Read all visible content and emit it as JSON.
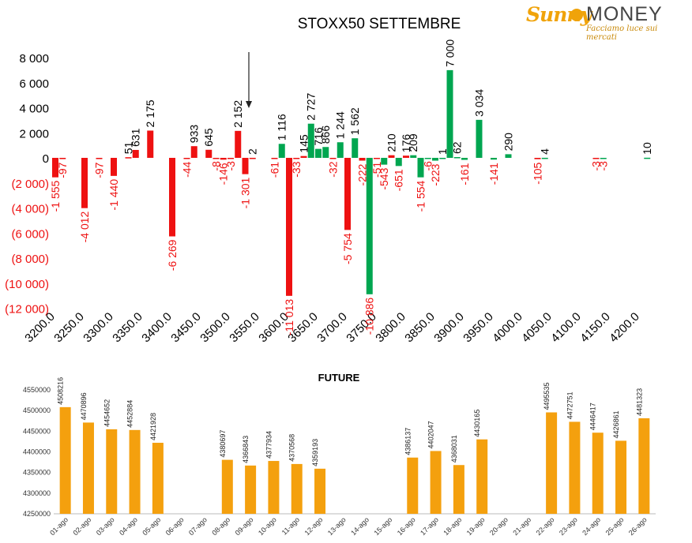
{
  "colors": {
    "negative": "#ee1111",
    "positive": "#00a650",
    "future": "#f4a00e",
    "text": "#000000",
    "negText": "#ee1111"
  },
  "logo": {
    "brand_a": "Sunny",
    "brand_b": "MONEY",
    "tagline": "Facciamo luce sui mercati"
  },
  "chart_data": [
    {
      "type": "bar",
      "title": "STOXX50 SETTEMBRE",
      "ylim": [
        -12000,
        8000
      ],
      "yticks": [
        8000,
        6000,
        4000,
        2000,
        0,
        -2000,
        -4000,
        -6000,
        -8000,
        -10000,
        -12000
      ],
      "yticklabels": [
        "8 000",
        "6 000",
        "4 000",
        "2 000",
        "0",
        "(2 000)",
        "(4 000)",
        "(6 000)",
        "(8 000)",
        "(10 000)",
        "(12 000)"
      ],
      "xticklabels": [
        "3200.0",
        "3250.0",
        "3300.0",
        "3350.0",
        "3400.0",
        "3450.0",
        "3500.0",
        "3550.0",
        "3600.0",
        "3650.0",
        "3700.0",
        "3750.0",
        "3800.0",
        "3850.0",
        "3900.0",
        "3950.0",
        "4000.0",
        "4050.0",
        "4100.0",
        "4150.0",
        "4200.0"
      ],
      "strike_start": 3200,
      "strike_step": 25,
      "arrow_strike": 3550,
      "series": [
        {
          "values": [
            -1555,
            -97,
            -4012,
            -97,
            -1440,
            51,
            631,
            2175,
            -6269,
            -44,
            933,
            645,
            -8,
            -146,
            -3,
            2152,
            -1301,
            2,
            -61,
            1116,
            -11013,
            -33,
            145,
            2727,
            716,
            866,
            -32,
            1244,
            -5754,
            1562,
            -222,
            -10886,
            -51,
            -543,
            210,
            -651,
            176,
            209,
            -1554,
            -6,
            -223,
            1,
            7000,
            62,
            -161,
            3034,
            -141,
            290,
            -105,
            4,
            -3,
            -3,
            10
          ]
        },
        {
          "values": [
            null,
            null,
            null,
            null,
            null,
            null,
            null,
            null,
            null,
            null,
            null,
            null,
            null,
            null,
            null,
            null,
            null,
            null,
            null,
            null,
            null,
            null,
            null,
            null,
            null,
            null,
            null,
            null,
            null,
            null,
            null,
            null,
            null,
            null,
            null,
            null,
            null,
            null,
            null,
            null,
            null,
            null,
            null,
            null,
            null,
            null,
            null,
            null,
            null,
            null,
            null,
            null,
            null
          ]
        }
      ],
      "bar_strikes": [
        3200,
        3212.5,
        3250,
        3275,
        3300,
        3325,
        3337.5,
        3362.5,
        3400,
        3425,
        3437.5,
        3462.5,
        3475,
        3487.5,
        3500,
        3512.5,
        3525,
        3537.5,
        3575,
        3587.5,
        3600,
        3612.5,
        3625,
        3637.5,
        3650,
        3662.5,
        3675,
        3687.5,
        3700,
        3712.5,
        3725,
        3737.5,
        3750,
        3762.5,
        3775,
        3787.5,
        3800,
        3812.5,
        3825,
        3837.5,
        3850,
        3862.5,
        3875,
        3887.5,
        3900,
        3925,
        3950,
        3975,
        4025,
        4037.5,
        4125,
        4137.5,
        4212.5
      ],
      "bar_colors": [
        "neg",
        "neg",
        "neg",
        "neg",
        "neg",
        "neg",
        "neg",
        "neg",
        "neg",
        "neg",
        "neg",
        "neg",
        "neg",
        "neg",
        "neg",
        "neg",
        "neg",
        "neg",
        "neg",
        "pos",
        "neg",
        "neg",
        "neg",
        "pos",
        "pos",
        "pos",
        "neg",
        "pos",
        "neg",
        "pos",
        "neg",
        "pos",
        "neg",
        "pos",
        "neg",
        "pos",
        "neg",
        "pos",
        "pos",
        "pos",
        "pos",
        "pos",
        "pos",
        "pos",
        "pos",
        "pos",
        "pos",
        "pos",
        "neg",
        "pos",
        "neg",
        "pos",
        "pos"
      ]
    },
    {
      "type": "bar",
      "title": "FUTURE",
      "ylim": [
        4250000,
        4550000
      ],
      "yticks": [
        4550000,
        4500000,
        4450000,
        4400000,
        4350000,
        4300000,
        4250000
      ],
      "categories": [
        "01-ago",
        "02-ago",
        "03-ago",
        "04-ago",
        "05-ago",
        "06-ago",
        "07-ago",
        "08-ago",
        "09-ago",
        "10-ago",
        "11-ago",
        "12-ago",
        "13-ago",
        "14-ago",
        "15-ago",
        "16-ago",
        "17-ago",
        "18-ago",
        "19-ago",
        "20-ago",
        "21-ago",
        "22-ago",
        "23-ago",
        "24-ago",
        "25-ago",
        "26-ago"
      ],
      "values": [
        4508216,
        4470896,
        4454652,
        4452884,
        4421928,
        null,
        null,
        4380697,
        4366843,
        4377934,
        4370568,
        4359193,
        null,
        null,
        null,
        4386137,
        4402047,
        4368031,
        4430165,
        null,
        null,
        4495535,
        4472751,
        4446417,
        4426861,
        4481323
      ]
    }
  ]
}
